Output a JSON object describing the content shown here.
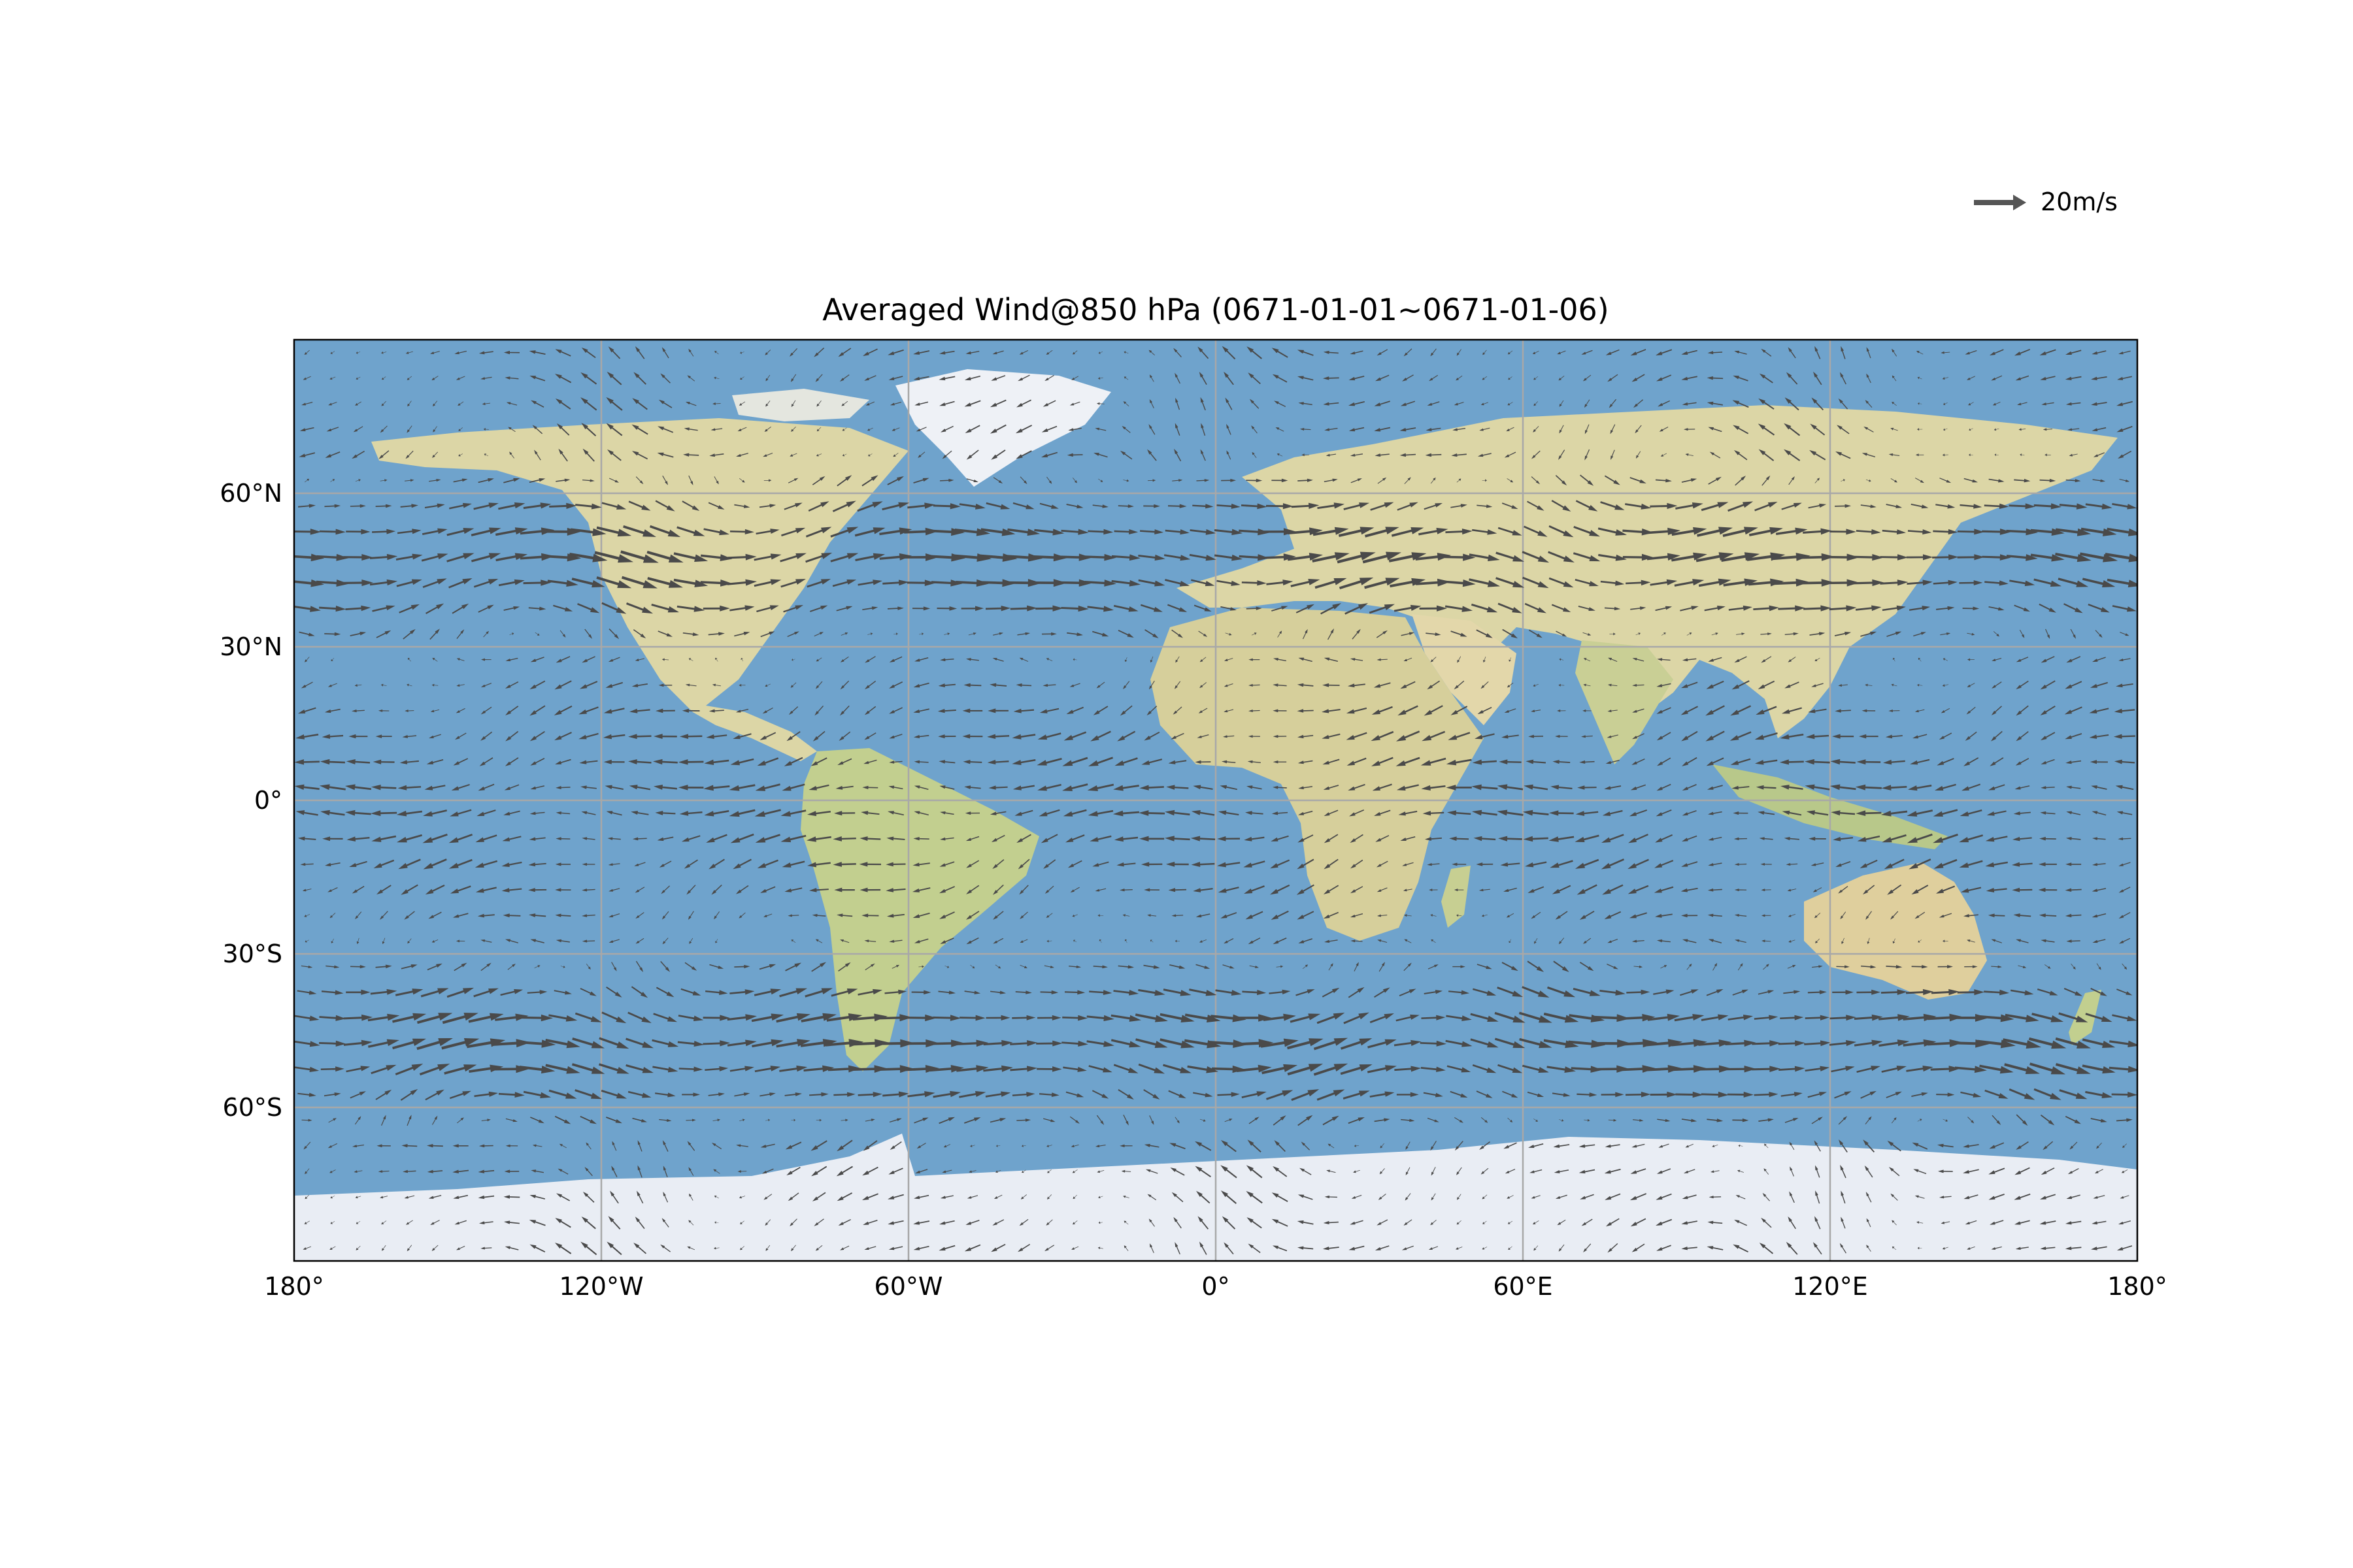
{
  "title": "Averaged Wind@850 hPa (0671-01-01~0671-01-06)",
  "reference_arrow": {
    "label": "20m/s",
    "speed": 20,
    "units": "m/s"
  },
  "map": {
    "projection": "PlateCarree",
    "extent_lon": [
      -180,
      180
    ],
    "extent_lat": [
      -90,
      90
    ],
    "background": "stock-image",
    "gridlines": true
  },
  "axes": {
    "x_ticks": [
      {
        "value": -180,
        "label": "180°"
      },
      {
        "value": -120,
        "label": "120°W"
      },
      {
        "value": -60,
        "label": "60°W"
      },
      {
        "value": 0,
        "label": "0°"
      },
      {
        "value": 60,
        "label": "60°E"
      },
      {
        "value": 120,
        "label": "120°E"
      },
      {
        "value": 180,
        "label": "180°"
      }
    ],
    "y_ticks": [
      {
        "value": 60,
        "label": "60°N"
      },
      {
        "value": 30,
        "label": "30°N"
      },
      {
        "value": 0,
        "label": "0°"
      },
      {
        "value": -30,
        "label": "30°S"
      },
      {
        "value": -60,
        "label": "60°S"
      }
    ]
  },
  "colors": {
    "ocean": "#6fa3cc",
    "land": "#dcd6a6",
    "land_green": "#b8c88a",
    "ice": "#e9edf4",
    "arrow": "#4a4a4a",
    "grid": "#a8a8a8",
    "frame": "#000000"
  }
}
